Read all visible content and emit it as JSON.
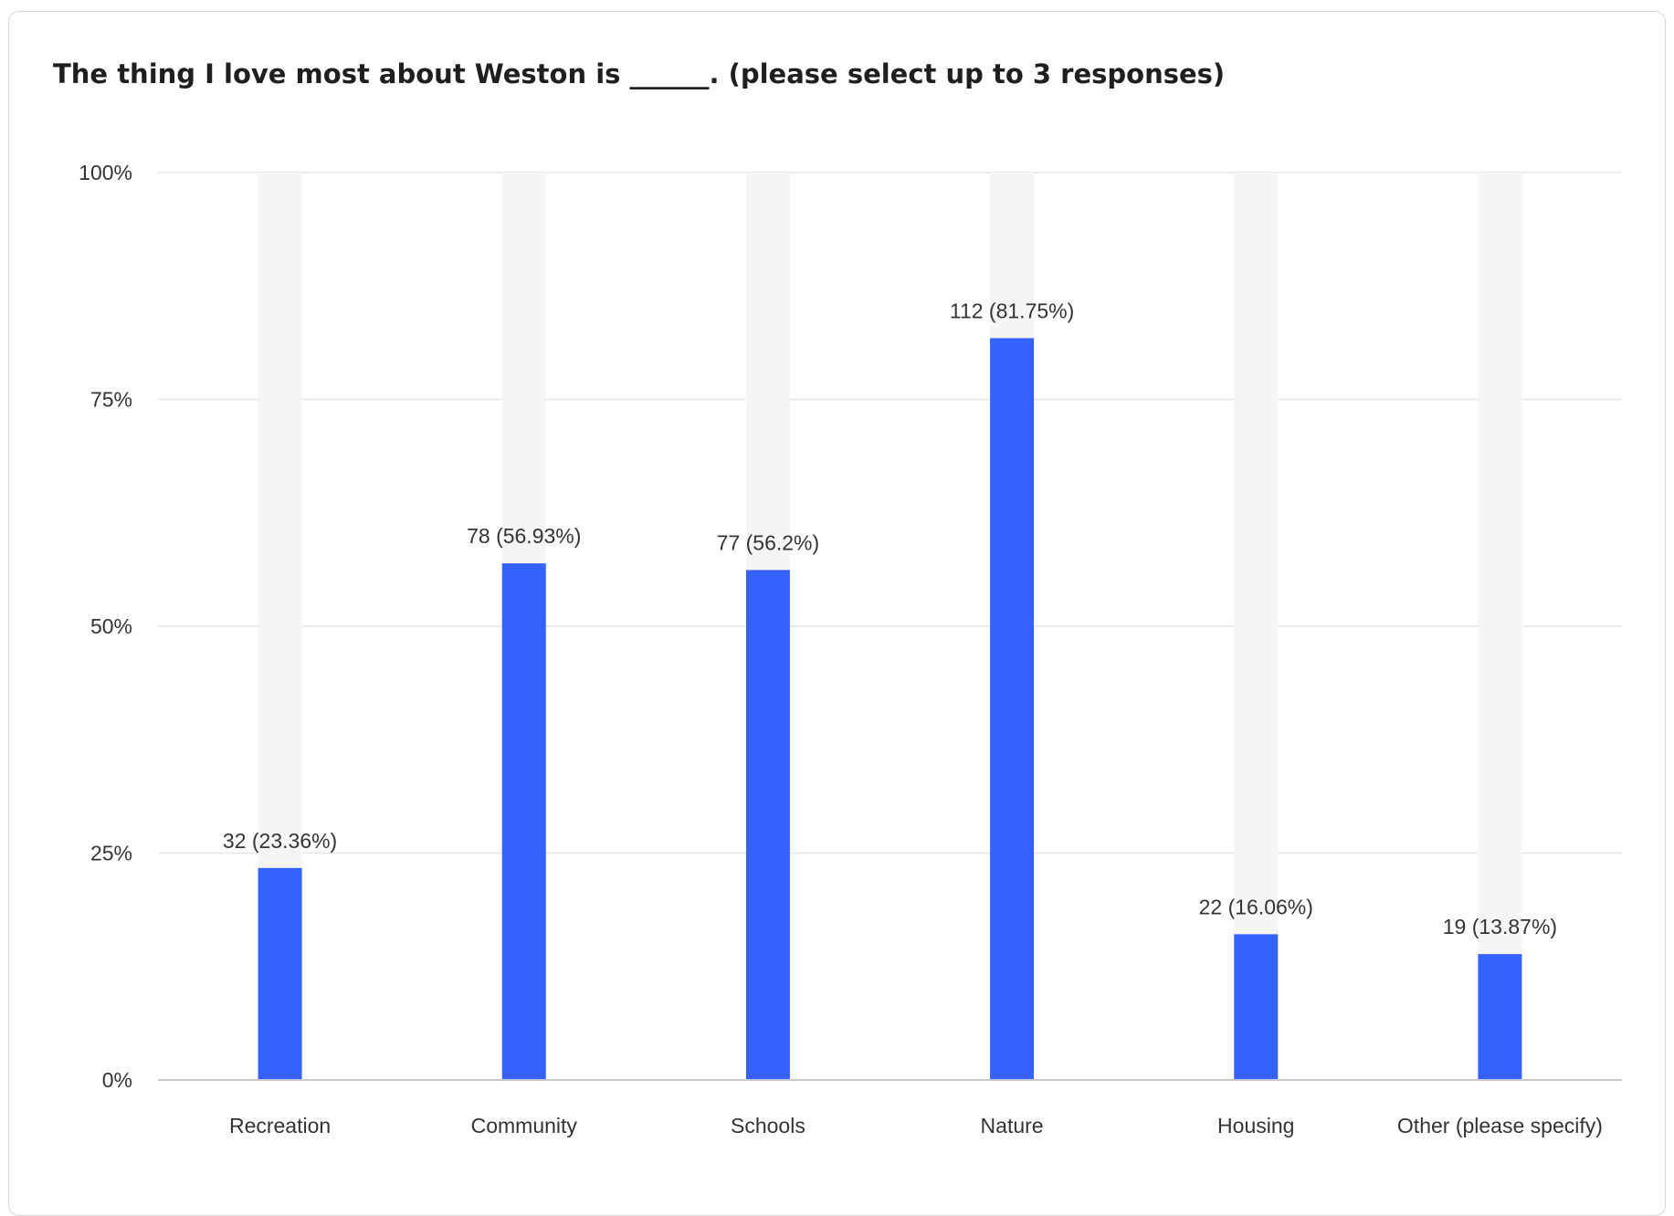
{
  "title": "The thing I love most about Weston is ______. (please select up to 3 responses)",
  "colors": {
    "bar": "#3461ff",
    "track": "#f5f5f5",
    "grid": "#e6e6e6",
    "axis": "#c8c8c8",
    "label": "#333333"
  },
  "chart_data": {
    "type": "bar",
    "title": "The thing I love most about Weston is ______. (please select up to 3 responses)",
    "categories": [
      "Recreation",
      "Community",
      "Schools",
      "Nature",
      "Housing",
      "Other (please specify)"
    ],
    "counts": [
      32,
      78,
      77,
      112,
      22,
      19
    ],
    "values": [
      23.36,
      56.93,
      56.2,
      81.75,
      16.06,
      13.87
    ],
    "data_labels": [
      "32 (23.36%)",
      "78 (56.93%)",
      "77 (56.2%)",
      "112 (81.75%)",
      "22 (16.06%)",
      "19 (13.87%)"
    ],
    "yticks": [
      "0%",
      "25%",
      "50%",
      "75%",
      "100%"
    ],
    "ytick_values": [
      0,
      25,
      50,
      75,
      100
    ],
    "ylim": [
      0,
      100
    ],
    "xlabel": "",
    "ylabel": "",
    "grid": true,
    "background_track": true
  }
}
